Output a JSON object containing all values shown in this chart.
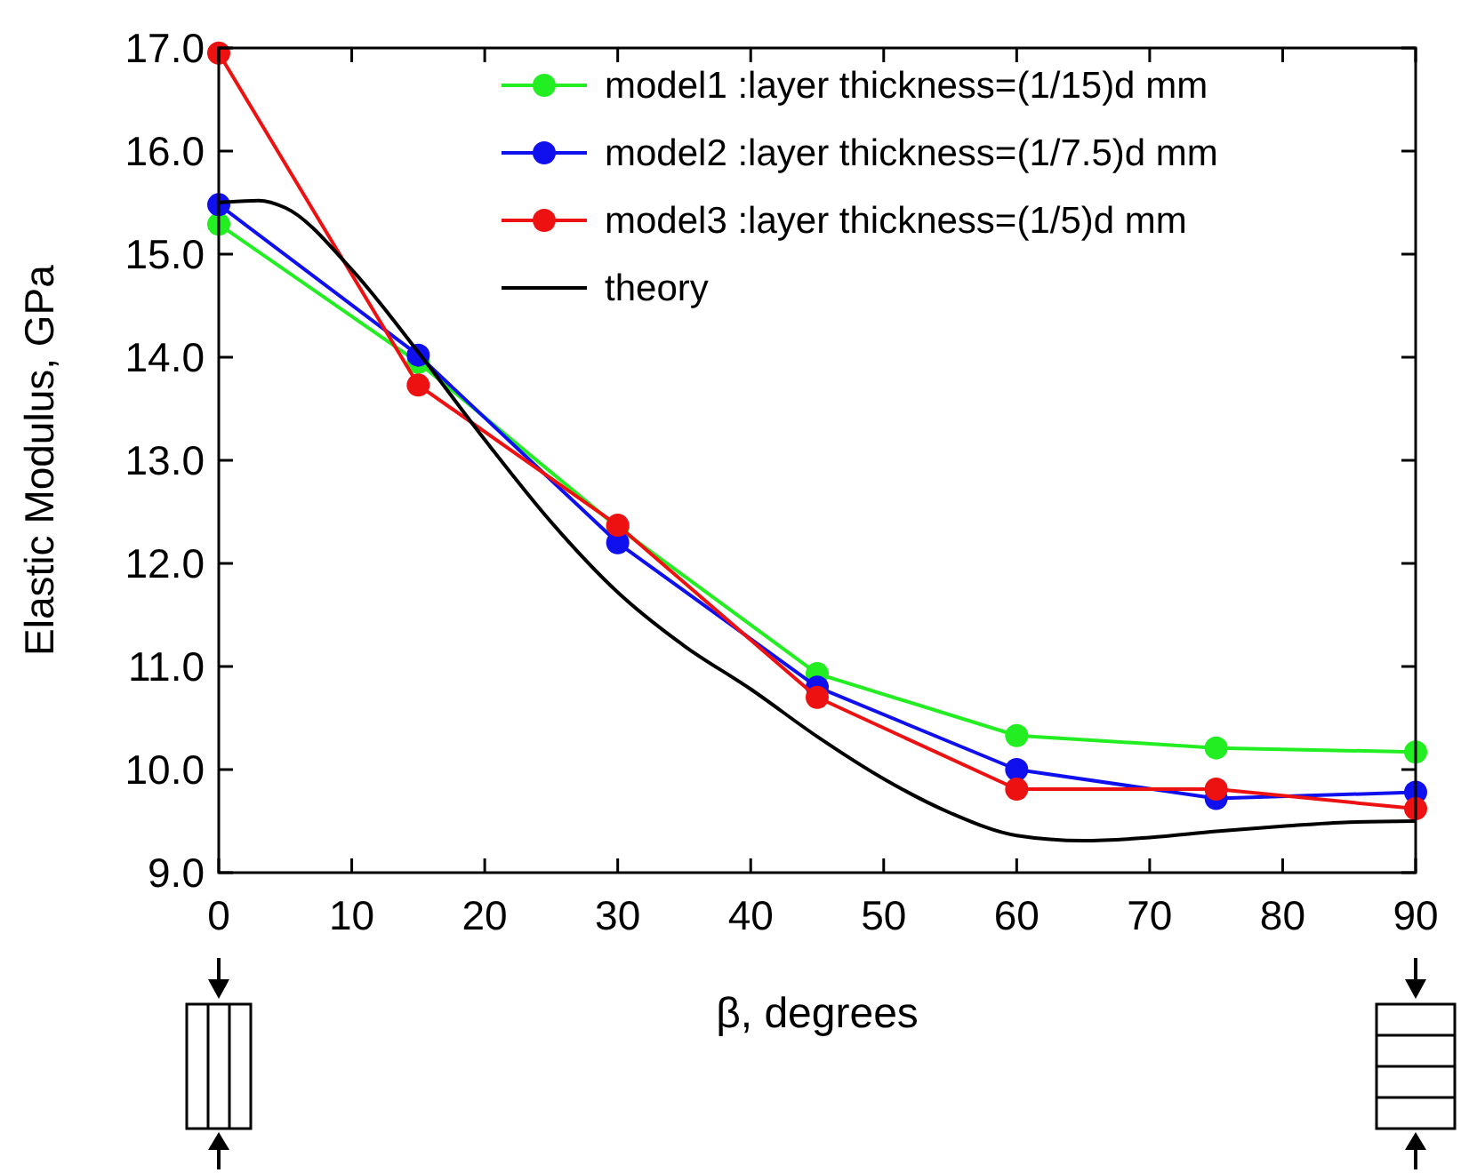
{
  "chart_data": {
    "type": "line",
    "xlabel": "β, degrees",
    "ylabel": "Elastic Modulus, GPa",
    "xlim": [
      0,
      90
    ],
    "xticks": [
      0,
      10,
      20,
      30,
      40,
      50,
      60,
      70,
      80,
      90
    ],
    "ylim": [
      9,
      17
    ],
    "yticks": [
      {
        "value": 9,
        "label": "9.0"
      },
      {
        "value": 10,
        "label": "10.0"
      },
      {
        "value": 11,
        "label": "11.0"
      },
      {
        "value": 12,
        "label": "12.0"
      },
      {
        "value": 13,
        "label": "13.0"
      },
      {
        "value": 14,
        "label": "14.0"
      },
      {
        "value": 15,
        "label": "15.0"
      },
      {
        "value": 16,
        "label": "16.0"
      },
      {
        "value": 17,
        "label": "17.0"
      }
    ],
    "x": [
      0,
      15,
      30,
      45,
      60,
      75,
      90
    ],
    "marker": "circle",
    "legend": "top right",
    "grid": false,
    "series": [
      {
        "name": "model1 :layer thickness=(1/15)d mm",
        "color": "#22ee22",
        "values": [
          15.29,
          13.95,
          12.35,
          10.93,
          10.33,
          10.21,
          10.17
        ]
      },
      {
        "name": "model2 :layer thickness=(1/7.5)d mm",
        "color": "#1010ee",
        "values": [
          15.48,
          14.02,
          12.2,
          10.8,
          10.0,
          9.72,
          9.78
        ]
      },
      {
        "name": "model3 :layer thickness=(1/5)d mm",
        "color": "#ee1111",
        "values": [
          16.95,
          13.73,
          12.37,
          10.7,
          9.81,
          9.81,
          9.62
        ]
      },
      {
        "name": "theory",
        "color": "#000000",
        "marker": "none",
        "x": [
          0,
          3,
          5,
          10,
          15,
          20,
          25,
          30,
          35,
          40,
          45,
          50,
          55,
          60,
          65,
          70,
          75,
          80,
          85,
          90
        ],
        "values": [
          15.5,
          15.52,
          15.45,
          14.85,
          14.05,
          13.2,
          12.4,
          11.72,
          11.2,
          10.78,
          10.32,
          9.91,
          9.58,
          9.36,
          9.31,
          9.34,
          9.4,
          9.45,
          9.49,
          9.5
        ]
      }
    ]
  }
}
